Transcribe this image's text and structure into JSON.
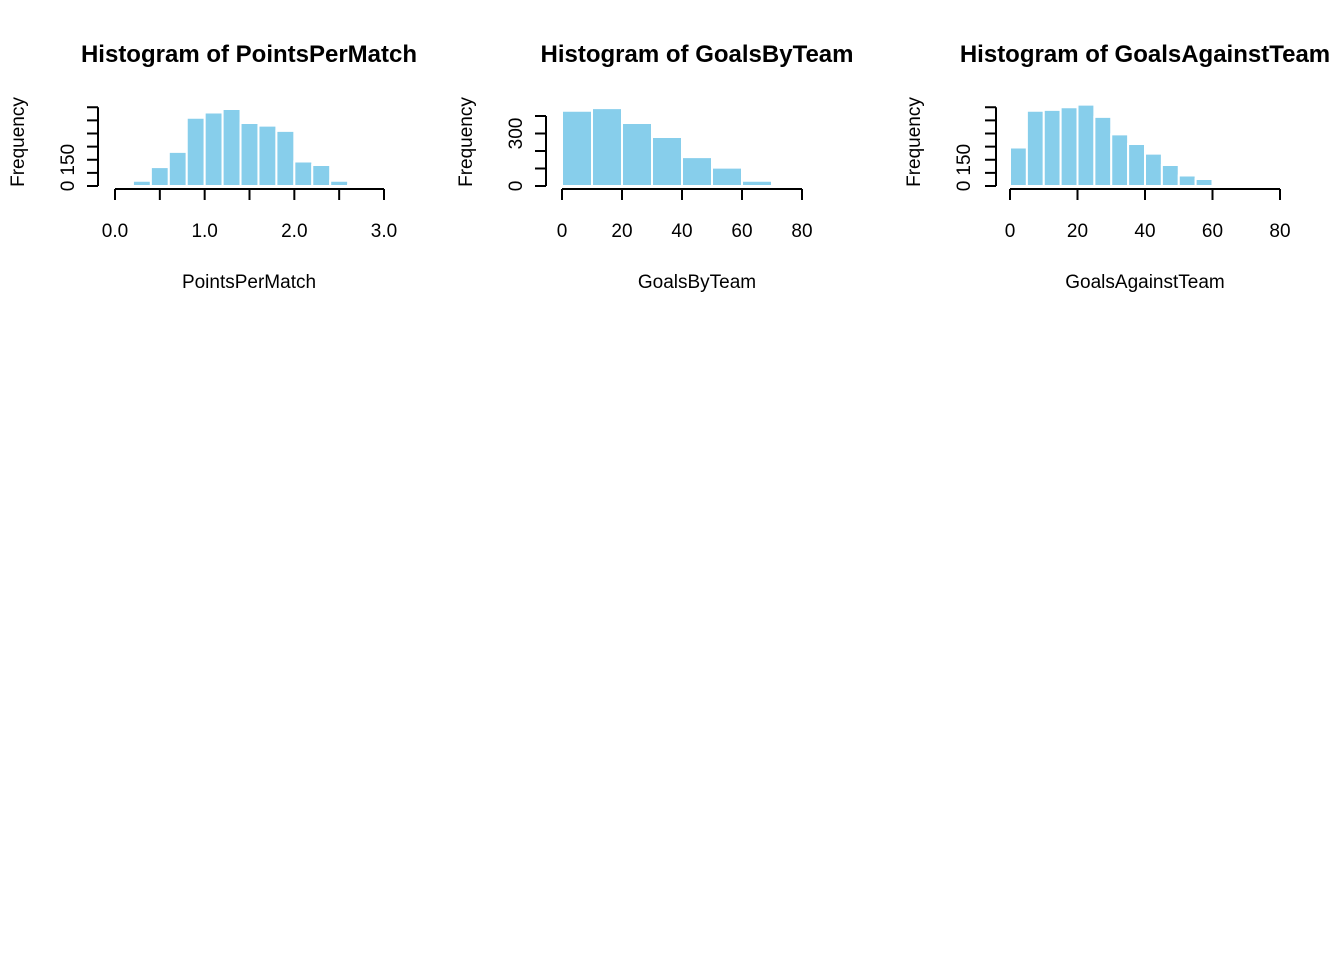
{
  "page": {
    "background": "#ffffff"
  },
  "style": {
    "bar_fill": "#87ceeb",
    "bar_stroke": "#ffffff"
  },
  "chart_data": [
    {
      "type": "bar",
      "title": "Histogram of PointsPerMatch",
      "xlabel": "PointsPerMatch",
      "ylabel": "Frequency",
      "xlim": [
        0,
        3
      ],
      "ylim": [
        0,
        480
      ],
      "xticks": [
        0,
        0.5,
        1,
        1.5,
        2,
        2.5,
        3
      ],
      "xtick_labels": [
        "0.0",
        "",
        "1.0",
        "",
        "2.0",
        "",
        "3.0"
      ],
      "yticks": [
        0,
        75,
        150,
        225,
        300,
        375,
        450
      ],
      "ytick_labels": [
        "0",
        "",
        "150",
        "",
        "",
        "",
        ""
      ],
      "bin_edges": [
        0,
        0.2,
        0.4,
        0.6,
        0.8,
        1.0,
        1.2,
        1.4,
        1.6,
        1.8,
        2.0,
        2.2,
        2.4,
        2.6,
        2.8
      ],
      "values": [
        6,
        30,
        108,
        195,
        390,
        420,
        440,
        360,
        345,
        315,
        140,
        120,
        30,
        6
      ]
    },
    {
      "type": "bar",
      "title": "Histogram of GoalsByTeam",
      "xlabel": "GoalsByTeam",
      "ylabel": "Frequency",
      "xlim": [
        0,
        80
      ],
      "ylim": [
        0,
        480
      ],
      "xticks": [
        0,
        20,
        40,
        60,
        80
      ],
      "xtick_labels": [
        "0",
        "20",
        "40",
        "60",
        "80"
      ],
      "yticks": [
        0,
        100,
        200,
        300,
        400
      ],
      "ytick_labels": [
        "0",
        "",
        "",
        "300",
        ""
      ],
      "bin_edges": [
        0,
        10,
        20,
        30,
        40,
        50,
        60,
        70,
        80
      ],
      "values": [
        430,
        445,
        360,
        280,
        165,
        105,
        30,
        5
      ]
    },
    {
      "type": "bar",
      "title": "Histogram of GoalsAgainstTeam",
      "xlabel": "GoalsAgainstTeam",
      "ylabel": "Frequency",
      "xlim": [
        0,
        80
      ],
      "ylim": [
        0,
        480
      ],
      "xticks": [
        0,
        20,
        40,
        60,
        80
      ],
      "xtick_labels": [
        "0",
        "20",
        "40",
        "60",
        "80"
      ],
      "yticks": [
        0,
        75,
        150,
        225,
        300,
        375,
        450
      ],
      "ytick_labels": [
        "0",
        "",
        "150",
        "",
        "",
        "",
        ""
      ],
      "bin_edges": [
        0,
        5,
        10,
        15,
        20,
        25,
        30,
        35,
        40,
        45,
        50,
        55,
        60,
        65
      ],
      "values": [
        220,
        430,
        435,
        450,
        465,
        395,
        295,
        240,
        185,
        120,
        60,
        40,
        10
      ]
    }
  ]
}
